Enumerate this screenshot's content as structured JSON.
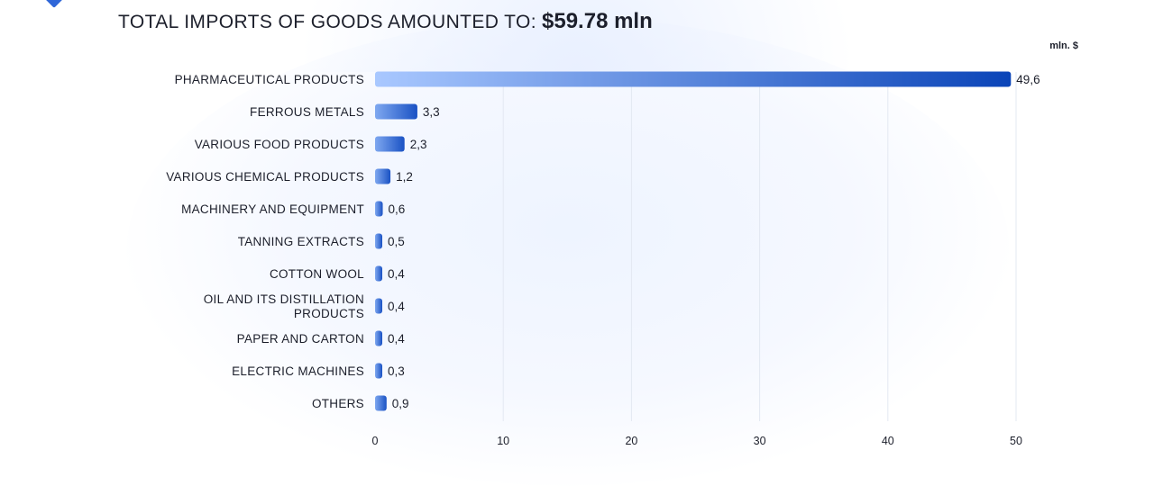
{
  "header": {
    "title": "TOTAL IMPORTS OF GOODS AMOUNTED TO:",
    "total": "$59.78 mln"
  },
  "chart_data": {
    "type": "bar",
    "orientation": "horizontal",
    "unit_label": "mln. $",
    "categories": [
      "PHARMACEUTICAL PRODUCTS",
      "FERROUS METALS",
      "VARIOUS FOOD PRODUCTS",
      "VARIOUS CHEMICAL PRODUCTS",
      "MACHINERY AND EQUIPMENT",
      "TANNING EXTRACTS",
      "COTTON WOOL",
      "OIL AND ITS DISTILLATION PRODUCTS",
      "PAPER AND CARTON",
      "ELECTRIC MACHINES",
      "OTHERS"
    ],
    "values": [
      49.6,
      3.3,
      2.3,
      1.2,
      0.6,
      0.5,
      0.4,
      0.4,
      0.4,
      0.3,
      0.9
    ],
    "value_labels": [
      "49,6",
      "3,3",
      "2,3",
      "1,2",
      "0,6",
      "0,5",
      "0,4",
      "0,4",
      "0,4",
      "0,3",
      "0,9"
    ],
    "xlim": [
      0,
      50
    ],
    "xticks": [
      0,
      10,
      20,
      30,
      40,
      50
    ],
    "grid": true,
    "colors": {
      "bar_start": "#a9c8ff",
      "bar_end": "#0a44b8",
      "small_bar_start": "#7fa8f0",
      "grid": "#e3e8f2"
    }
  }
}
